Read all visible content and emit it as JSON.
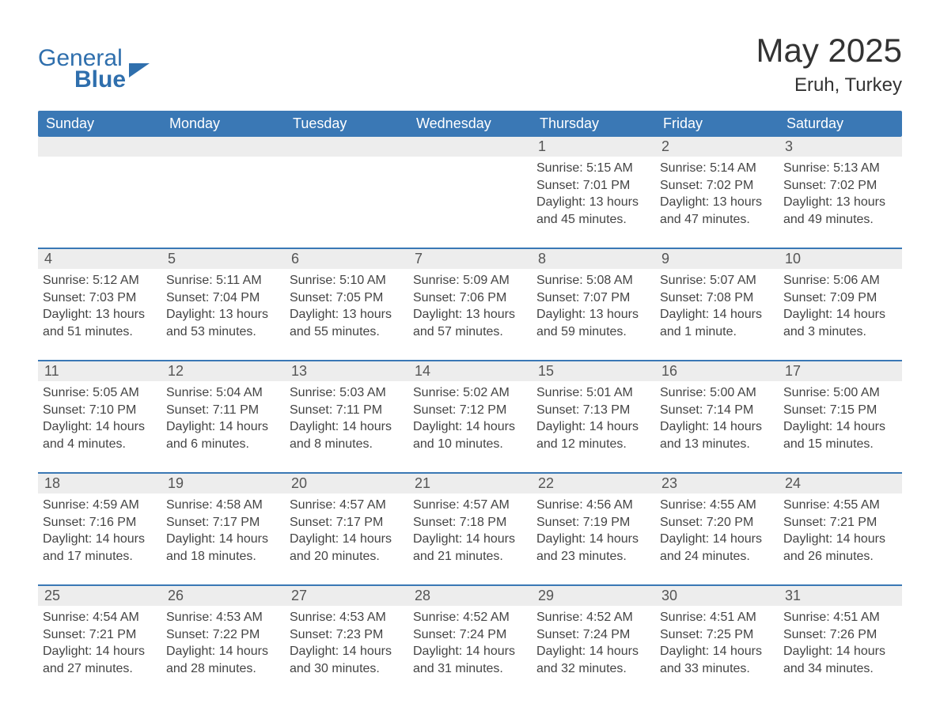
{
  "brand": {
    "line1": "General",
    "line2": "Blue"
  },
  "header": {
    "title": "May 2025",
    "location": "Eruh, Turkey"
  },
  "colors": {
    "accent": "#3a78b5",
    "header_text": "#ffffff",
    "daynum_bg": "#ededed",
    "body_text": "#444444",
    "background": "#ffffff"
  },
  "typography": {
    "title_fontsize": 42,
    "location_fontsize": 24,
    "header_fontsize": 18,
    "body_fontsize": 16,
    "font_family": "Segoe UI"
  },
  "calendar": {
    "day_headers": [
      "Sunday",
      "Monday",
      "Tuesday",
      "Wednesday",
      "Thursday",
      "Friday",
      "Saturday"
    ],
    "weeks": [
      [
        {
          "n": "",
          "empty": true
        },
        {
          "n": "",
          "empty": true
        },
        {
          "n": "",
          "empty": true
        },
        {
          "n": "",
          "empty": true
        },
        {
          "n": "1",
          "sunrise": "Sunrise: 5:15 AM",
          "sunset": "Sunset: 7:01 PM",
          "daylight": "Daylight: 13 hours and 45 minutes."
        },
        {
          "n": "2",
          "sunrise": "Sunrise: 5:14 AM",
          "sunset": "Sunset: 7:02 PM",
          "daylight": "Daylight: 13 hours and 47 minutes."
        },
        {
          "n": "3",
          "sunrise": "Sunrise: 5:13 AM",
          "sunset": "Sunset: 7:02 PM",
          "daylight": "Daylight: 13 hours and 49 minutes."
        }
      ],
      [
        {
          "n": "4",
          "sunrise": "Sunrise: 5:12 AM",
          "sunset": "Sunset: 7:03 PM",
          "daylight": "Daylight: 13 hours and 51 minutes."
        },
        {
          "n": "5",
          "sunrise": "Sunrise: 5:11 AM",
          "sunset": "Sunset: 7:04 PM",
          "daylight": "Daylight: 13 hours and 53 minutes."
        },
        {
          "n": "6",
          "sunrise": "Sunrise: 5:10 AM",
          "sunset": "Sunset: 7:05 PM",
          "daylight": "Daylight: 13 hours and 55 minutes."
        },
        {
          "n": "7",
          "sunrise": "Sunrise: 5:09 AM",
          "sunset": "Sunset: 7:06 PM",
          "daylight": "Daylight: 13 hours and 57 minutes."
        },
        {
          "n": "8",
          "sunrise": "Sunrise: 5:08 AM",
          "sunset": "Sunset: 7:07 PM",
          "daylight": "Daylight: 13 hours and 59 minutes."
        },
        {
          "n": "9",
          "sunrise": "Sunrise: 5:07 AM",
          "sunset": "Sunset: 7:08 PM",
          "daylight": "Daylight: 14 hours and 1 minute."
        },
        {
          "n": "10",
          "sunrise": "Sunrise: 5:06 AM",
          "sunset": "Sunset: 7:09 PM",
          "daylight": "Daylight: 14 hours and 3 minutes."
        }
      ],
      [
        {
          "n": "11",
          "sunrise": "Sunrise: 5:05 AM",
          "sunset": "Sunset: 7:10 PM",
          "daylight": "Daylight: 14 hours and 4 minutes."
        },
        {
          "n": "12",
          "sunrise": "Sunrise: 5:04 AM",
          "sunset": "Sunset: 7:11 PM",
          "daylight": "Daylight: 14 hours and 6 minutes."
        },
        {
          "n": "13",
          "sunrise": "Sunrise: 5:03 AM",
          "sunset": "Sunset: 7:11 PM",
          "daylight": "Daylight: 14 hours and 8 minutes."
        },
        {
          "n": "14",
          "sunrise": "Sunrise: 5:02 AM",
          "sunset": "Sunset: 7:12 PM",
          "daylight": "Daylight: 14 hours and 10 minutes."
        },
        {
          "n": "15",
          "sunrise": "Sunrise: 5:01 AM",
          "sunset": "Sunset: 7:13 PM",
          "daylight": "Daylight: 14 hours and 12 minutes."
        },
        {
          "n": "16",
          "sunrise": "Sunrise: 5:00 AM",
          "sunset": "Sunset: 7:14 PM",
          "daylight": "Daylight: 14 hours and 13 minutes."
        },
        {
          "n": "17",
          "sunrise": "Sunrise: 5:00 AM",
          "sunset": "Sunset: 7:15 PM",
          "daylight": "Daylight: 14 hours and 15 minutes."
        }
      ],
      [
        {
          "n": "18",
          "sunrise": "Sunrise: 4:59 AM",
          "sunset": "Sunset: 7:16 PM",
          "daylight": "Daylight: 14 hours and 17 minutes."
        },
        {
          "n": "19",
          "sunrise": "Sunrise: 4:58 AM",
          "sunset": "Sunset: 7:17 PM",
          "daylight": "Daylight: 14 hours and 18 minutes."
        },
        {
          "n": "20",
          "sunrise": "Sunrise: 4:57 AM",
          "sunset": "Sunset: 7:17 PM",
          "daylight": "Daylight: 14 hours and 20 minutes."
        },
        {
          "n": "21",
          "sunrise": "Sunrise: 4:57 AM",
          "sunset": "Sunset: 7:18 PM",
          "daylight": "Daylight: 14 hours and 21 minutes."
        },
        {
          "n": "22",
          "sunrise": "Sunrise: 4:56 AM",
          "sunset": "Sunset: 7:19 PM",
          "daylight": "Daylight: 14 hours and 23 minutes."
        },
        {
          "n": "23",
          "sunrise": "Sunrise: 4:55 AM",
          "sunset": "Sunset: 7:20 PM",
          "daylight": "Daylight: 14 hours and 24 minutes."
        },
        {
          "n": "24",
          "sunrise": "Sunrise: 4:55 AM",
          "sunset": "Sunset: 7:21 PM",
          "daylight": "Daylight: 14 hours and 26 minutes."
        }
      ],
      [
        {
          "n": "25",
          "sunrise": "Sunrise: 4:54 AM",
          "sunset": "Sunset: 7:21 PM",
          "daylight": "Daylight: 14 hours and 27 minutes."
        },
        {
          "n": "26",
          "sunrise": "Sunrise: 4:53 AM",
          "sunset": "Sunset: 7:22 PM",
          "daylight": "Daylight: 14 hours and 28 minutes."
        },
        {
          "n": "27",
          "sunrise": "Sunrise: 4:53 AM",
          "sunset": "Sunset: 7:23 PM",
          "daylight": "Daylight: 14 hours and 30 minutes."
        },
        {
          "n": "28",
          "sunrise": "Sunrise: 4:52 AM",
          "sunset": "Sunset: 7:24 PM",
          "daylight": "Daylight: 14 hours and 31 minutes."
        },
        {
          "n": "29",
          "sunrise": "Sunrise: 4:52 AM",
          "sunset": "Sunset: 7:24 PM",
          "daylight": "Daylight: 14 hours and 32 minutes."
        },
        {
          "n": "30",
          "sunrise": "Sunrise: 4:51 AM",
          "sunset": "Sunset: 7:25 PM",
          "daylight": "Daylight: 14 hours and 33 minutes."
        },
        {
          "n": "31",
          "sunrise": "Sunrise: 4:51 AM",
          "sunset": "Sunset: 7:26 PM",
          "daylight": "Daylight: 14 hours and 34 minutes."
        }
      ]
    ]
  }
}
